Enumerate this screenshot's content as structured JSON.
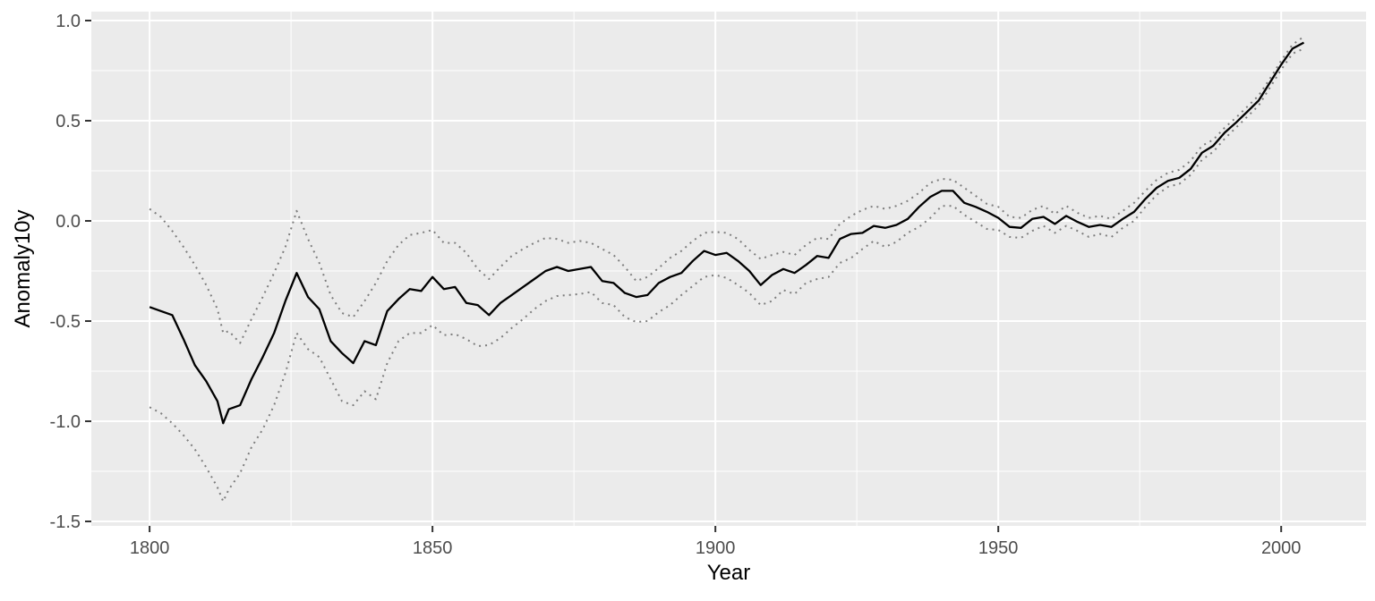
{
  "chart_data": {
    "type": "line",
    "title": "",
    "xlabel": "Year",
    "ylabel": "Anomaly10y",
    "grid": true,
    "legend_position": "none",
    "panel_background": "#EBEBEB",
    "grid_color": "#FFFFFF",
    "tick_color": "#333333",
    "tick_label_color": "#4D4D4D",
    "solid_line_color": "#000000",
    "dotted_line_color": "#7D7D7D",
    "xlim": [
      1789.7,
      2015.0
    ],
    "ylim": [
      -1.5223,
      1.0446
    ],
    "x_ticks": [
      "1800",
      "1850",
      "1900",
      "1950",
      "2000"
    ],
    "x_tick_values": [
      1800,
      1850,
      1900,
      1950,
      2000
    ],
    "x_minor_values": [
      1825,
      1875,
      1925,
      1975
    ],
    "y_ticks": [
      "1.0",
      "0.5",
      "0.0",
      "-0.5",
      "-1.0",
      "-1.5"
    ],
    "y_tick_values": [
      1.0,
      0.5,
      0.0,
      -0.5,
      -1.0,
      -1.5
    ],
    "y_minor_values": [
      0.75,
      0.25,
      -0.25,
      -0.75,
      -1.25
    ],
    "x": [
      1800,
      1802,
      1804,
      1806,
      1808,
      1810,
      1812,
      1813,
      1814,
      1816,
      1818,
      1820,
      1822,
      1824,
      1826,
      1828,
      1830,
      1832,
      1834,
      1836,
      1838,
      1840,
      1842,
      1844,
      1846,
      1848,
      1850,
      1852,
      1854,
      1856,
      1858,
      1860,
      1862,
      1864,
      1866,
      1868,
      1870,
      1872,
      1874,
      1876,
      1878,
      1880,
      1882,
      1884,
      1886,
      1888,
      1890,
      1892,
      1894,
      1896,
      1898,
      1900,
      1902,
      1904,
      1906,
      1908,
      1910,
      1912,
      1914,
      1916,
      1918,
      1920,
      1922,
      1924,
      1926,
      1928,
      1930,
      1932,
      1934,
      1936,
      1938,
      1940,
      1942,
      1944,
      1946,
      1948,
      1950,
      1952,
      1954,
      1956,
      1958,
      1960,
      1962,
      1964,
      1966,
      1968,
      1970,
      1972,
      1974,
      1976,
      1978,
      1980,
      1982,
      1984,
      1986,
      1988,
      1990,
      1992,
      1994,
      1996,
      1998,
      2000,
      2002,
      2004
    ],
    "series": [
      {
        "name": "anomaly10y",
        "style": "solid",
        "values": [
          -0.43,
          -0.45,
          -0.47,
          -0.59,
          -0.72,
          -0.8,
          -0.9,
          -1.01,
          -0.94,
          -0.92,
          -0.79,
          -0.68,
          -0.56,
          -0.4,
          -0.26,
          -0.38,
          -0.44,
          -0.6,
          -0.66,
          -0.71,
          -0.6,
          -0.62,
          -0.45,
          -0.39,
          -0.34,
          -0.35,
          -0.28,
          -0.34,
          -0.33,
          -0.41,
          -0.42,
          -0.47,
          -0.41,
          -0.37,
          -0.33,
          -0.29,
          -0.25,
          -0.23,
          -0.25,
          -0.24,
          -0.23,
          -0.3,
          -0.31,
          -0.36,
          -0.38,
          -0.37,
          -0.31,
          -0.28,
          -0.26,
          -0.2,
          -0.15,
          -0.17,
          -0.16,
          -0.2,
          -0.25,
          -0.32,
          -0.27,
          -0.24,
          -0.26,
          -0.22,
          -0.175,
          -0.185,
          -0.09,
          -0.065,
          -0.06,
          -0.025,
          -0.035,
          -0.02,
          0.01,
          0.07,
          0.12,
          0.15,
          0.15,
          0.09,
          0.07,
          0.045,
          0.015,
          -0.03,
          -0.035,
          0.01,
          0.02,
          -0.015,
          0.025,
          -0.005,
          -0.03,
          -0.02,
          -0.03,
          0.01,
          0.045,
          0.11,
          0.165,
          0.2,
          0.215,
          0.26,
          0.34,
          0.375,
          0.44,
          0.49,
          0.545,
          0.6,
          0.69,
          0.78,
          0.86,
          0.89
        ]
      },
      {
        "name": "upper_bound",
        "style": "dotted",
        "values": [
          0.06,
          0.02,
          -0.05,
          -0.13,
          -0.22,
          -0.32,
          -0.44,
          -0.56,
          -0.55,
          -0.61,
          -0.49,
          -0.38,
          -0.26,
          -0.13,
          0.05,
          -0.09,
          -0.21,
          -0.37,
          -0.46,
          -0.48,
          -0.4,
          -0.31,
          -0.2,
          -0.12,
          -0.07,
          -0.06,
          -0.045,
          -0.11,
          -0.11,
          -0.16,
          -0.24,
          -0.29,
          -0.23,
          -0.175,
          -0.14,
          -0.11,
          -0.085,
          -0.09,
          -0.11,
          -0.1,
          -0.11,
          -0.14,
          -0.17,
          -0.23,
          -0.3,
          -0.28,
          -0.235,
          -0.185,
          -0.15,
          -0.1,
          -0.06,
          -0.055,
          -0.06,
          -0.09,
          -0.145,
          -0.19,
          -0.17,
          -0.155,
          -0.17,
          -0.12,
          -0.085,
          -0.09,
          -0.015,
          0.025,
          0.055,
          0.075,
          0.06,
          0.075,
          0.1,
          0.14,
          0.19,
          0.21,
          0.205,
          0.165,
          0.125,
          0.085,
          0.07,
          0.02,
          0.015,
          0.055,
          0.075,
          0.035,
          0.075,
          0.04,
          0.015,
          0.025,
          0.01,
          0.05,
          0.09,
          0.15,
          0.205,
          0.24,
          0.255,
          0.3,
          0.375,
          0.405,
          0.465,
          0.515,
          0.57,
          0.625,
          0.71,
          0.8,
          0.88,
          0.92
        ]
      },
      {
        "name": "lower_bound",
        "style": "dotted",
        "values": [
          -0.93,
          -0.96,
          -1.01,
          -1.07,
          -1.14,
          -1.23,
          -1.33,
          -1.4,
          -1.34,
          -1.26,
          -1.13,
          -1.04,
          -0.92,
          -0.76,
          -0.56,
          -0.64,
          -0.68,
          -0.79,
          -0.9,
          -0.92,
          -0.85,
          -0.89,
          -0.71,
          -0.6,
          -0.56,
          -0.56,
          -0.52,
          -0.57,
          -0.565,
          -0.59,
          -0.625,
          -0.62,
          -0.585,
          -0.535,
          -0.49,
          -0.44,
          -0.4,
          -0.375,
          -0.37,
          -0.365,
          -0.355,
          -0.41,
          -0.42,
          -0.48,
          -0.505,
          -0.5,
          -0.455,
          -0.42,
          -0.37,
          -0.325,
          -0.28,
          -0.27,
          -0.285,
          -0.32,
          -0.36,
          -0.42,
          -0.4,
          -0.345,
          -0.365,
          -0.31,
          -0.29,
          -0.28,
          -0.21,
          -0.185,
          -0.14,
          -0.1,
          -0.13,
          -0.105,
          -0.06,
          -0.03,
          0.015,
          0.075,
          0.075,
          0.03,
          -0.005,
          -0.04,
          -0.045,
          -0.08,
          -0.085,
          -0.05,
          -0.025,
          -0.06,
          -0.025,
          -0.05,
          -0.08,
          -0.065,
          -0.08,
          -0.035,
          0.0,
          0.07,
          0.13,
          0.17,
          0.185,
          0.23,
          0.305,
          0.345,
          0.41,
          0.465,
          0.52,
          0.575,
          0.665,
          0.755,
          0.835,
          0.86
        ]
      }
    ]
  }
}
